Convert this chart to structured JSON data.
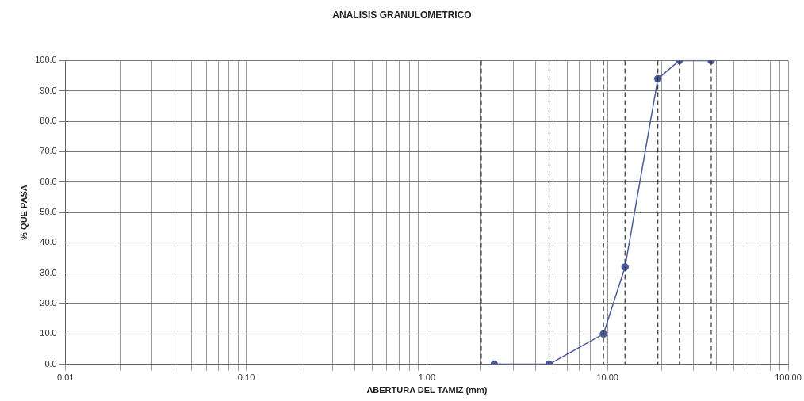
{
  "chart_data": {
    "type": "line",
    "title": "ANALISIS GRANULOMETRICO",
    "xlabel": "ABERTURA DEL TAMIZ (mm)",
    "ylabel": "% QUE PASA",
    "log": "x",
    "grid": true,
    "legend": false,
    "marker": "circle",
    "line_style": "solid",
    "xlim": [
      0.01,
      100
    ],
    "ylim": [
      0,
      100
    ],
    "xticks": [
      {
        "value": 0.01,
        "label": "0.01"
      },
      {
        "value": 0.02,
        "label": null
      },
      {
        "value": 0.03,
        "label": null
      },
      {
        "value": 0.04,
        "label": null
      },
      {
        "value": 0.05,
        "label": null
      },
      {
        "value": 0.06,
        "label": null
      },
      {
        "value": 0.07,
        "label": null
      },
      {
        "value": 0.08,
        "label": null
      },
      {
        "value": 0.09,
        "label": null
      },
      {
        "value": 0.1,
        "label": "0.10"
      },
      {
        "value": 0.2,
        "label": null
      },
      {
        "value": 0.3,
        "label": null
      },
      {
        "value": 0.4,
        "label": null
      },
      {
        "value": 0.5,
        "label": null
      },
      {
        "value": 0.6,
        "label": null
      },
      {
        "value": 0.7,
        "label": null
      },
      {
        "value": 0.8,
        "label": null
      },
      {
        "value": 0.9,
        "label": null
      },
      {
        "value": 1,
        "label": "1.00"
      },
      {
        "value": 2,
        "label": null
      },
      {
        "value": 3,
        "label": null
      },
      {
        "value": 4,
        "label": null
      },
      {
        "value": 5,
        "label": null
      },
      {
        "value": 6,
        "label": null
      },
      {
        "value": 7,
        "label": null
      },
      {
        "value": 8,
        "label": null
      },
      {
        "value": 9,
        "label": null
      },
      {
        "value": 10,
        "label": "10.00"
      },
      {
        "value": 20,
        "label": null
      },
      {
        "value": 30,
        "label": null
      },
      {
        "value": 40,
        "label": null
      },
      {
        "value": 50,
        "label": null
      },
      {
        "value": 60,
        "label": null
      },
      {
        "value": 70,
        "label": null
      },
      {
        "value": 80,
        "label": null
      },
      {
        "value": 90,
        "label": null
      },
      {
        "value": 100,
        "label": "100.00"
      }
    ],
    "yticks": [
      {
        "value": 0,
        "label": "0.0"
      },
      {
        "value": 10,
        "label": "10.0"
      },
      {
        "value": 20,
        "label": "20.0"
      },
      {
        "value": 30,
        "label": "30.0"
      },
      {
        "value": 40,
        "label": "40.0"
      },
      {
        "value": 50,
        "label": "50.0"
      },
      {
        "value": 60,
        "label": "60.0"
      },
      {
        "value": 70,
        "label": "70.0"
      },
      {
        "value": 80,
        "label": "80.0"
      },
      {
        "value": 90,
        "label": "90.0"
      },
      {
        "value": 100,
        "label": "100.0"
      }
    ],
    "x": [
      2.36,
      4.75,
      9.5,
      12.5,
      19,
      25,
      37.5
    ],
    "series": [
      {
        "color": "#4a5a9c",
        "values": [
          0,
          0,
          10,
          32,
          94,
          100,
          100
        ]
      }
    ],
    "ref_lines": [
      {
        "axis": "x",
        "value": 2,
        "color": "#333333",
        "line_style": "dashed"
      },
      {
        "axis": "x",
        "value": 4.75,
        "color": "#333333",
        "line_style": "dashed"
      },
      {
        "axis": "x",
        "value": 9.5,
        "color": "#333333",
        "line_style": "dashed"
      },
      {
        "axis": "x",
        "value": 12.5,
        "color": "#333333",
        "line_style": "dashed"
      },
      {
        "axis": "x",
        "value": 19,
        "color": "#333333",
        "line_style": "dashed"
      },
      {
        "axis": "x",
        "value": 25,
        "color": "#333333",
        "line_style": "dashed"
      },
      {
        "axis": "x",
        "value": 37.5,
        "color": "#333333",
        "line_style": "dashed"
      }
    ]
  }
}
